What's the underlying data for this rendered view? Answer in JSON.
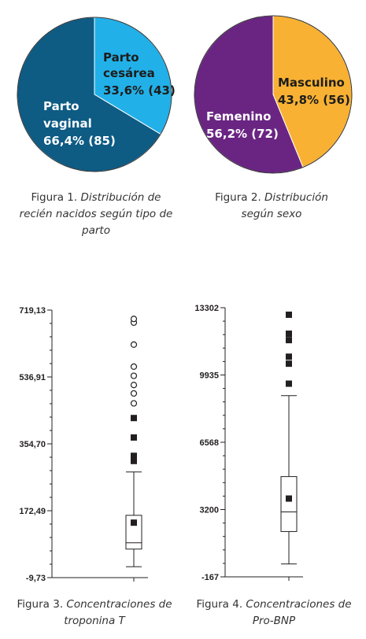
{
  "colors": {
    "vaginal": "#0e5b84",
    "cesarea": "#22b0e8",
    "femenino": "#6a2583",
    "masculino": "#f8b133",
    "pie_border": "#333333",
    "axis": "#231f20"
  },
  "chart_data": [
    {
      "type": "pie",
      "slices": [
        {
          "label_line1": "Parto",
          "label_line2": "cesárea",
          "value_text": "33,6% (43)",
          "percent": 33.6,
          "count": 43
        },
        {
          "label_line1": "Parto",
          "label_line2": "vaginal",
          "value_text": "66,4% (85)",
          "percent": 66.4,
          "count": 85
        }
      ],
      "caption_prefix": "Figura 1.",
      "caption_italic": "Distribución de recién nacidos según tipo de parto"
    },
    {
      "type": "pie",
      "slices": [
        {
          "label_line1": "Masculino",
          "value_text": "43,8% (56)",
          "percent": 43.8,
          "count": 56
        },
        {
          "label_line1": "Femenino",
          "value_text": "56,2% (72)",
          "percent": 56.2,
          "count": 72
        }
      ],
      "caption_prefix": "Figura 2.",
      "caption_italic": "Distribución según sexo"
    },
    {
      "type": "box",
      "yticks": [
        -9.73,
        172.49,
        354.7,
        536.91,
        719.13
      ],
      "ytick_labels": [
        "-9,73",
        "172,49",
        "354,70",
        "536,91",
        "719,13"
      ],
      "ylim": [
        -9.73,
        719.13
      ],
      "whisker_low": 20,
      "q1": 68,
      "median": 85,
      "q3": 160,
      "whisker_high": 278,
      "mean": 140,
      "outliers_circle": [
        685,
        695,
        625,
        565,
        540,
        515,
        492,
        465
      ],
      "outliers_square": [
        425,
        372,
        322,
        315,
        308
      ],
      "caption_prefix": "Figura 3.",
      "caption_italic": "Concentraciones de troponina T"
    },
    {
      "type": "box",
      "yticks": [
        -167,
        3200,
        6568,
        9935,
        13302
      ],
      "ytick_labels": [
        "-167",
        "3200",
        "6568",
        "9935",
        "13302"
      ],
      "ylim": [
        -167,
        13302
      ],
      "whisker_low": 480,
      "q1": 2100,
      "median": 3080,
      "q3": 4850,
      "whisker_high": 8900,
      "mean": 3750,
      "outliers_square": [
        12950,
        12000,
        11680,
        10850,
        10500,
        9500
      ],
      "caption_prefix": "Figura 4.",
      "caption_italic": "Concentraciones de Pro-BNP"
    }
  ]
}
